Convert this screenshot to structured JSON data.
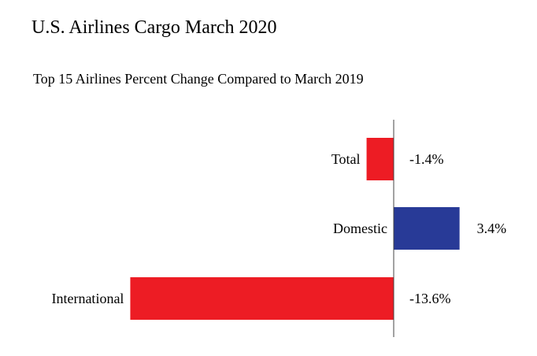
{
  "chart_data": {
    "type": "bar",
    "orientation": "horizontal",
    "title": "U.S. Airlines Cargo March 2020",
    "subtitle": "Top 15 Airlines Percent Change Compared to March 2019",
    "categories": [
      "Total",
      "Domestic",
      "International"
    ],
    "values": [
      -1.4,
      3.4,
      -13.6
    ],
    "data_labels": [
      "-1.4%",
      "3.4%",
      "-13.6%"
    ],
    "colors": [
      "#ED1C24",
      "#283A97",
      "#ED1C24"
    ],
    "xlim": [
      -14.4,
      7.3
    ],
    "grid": false,
    "legend": "none"
  }
}
